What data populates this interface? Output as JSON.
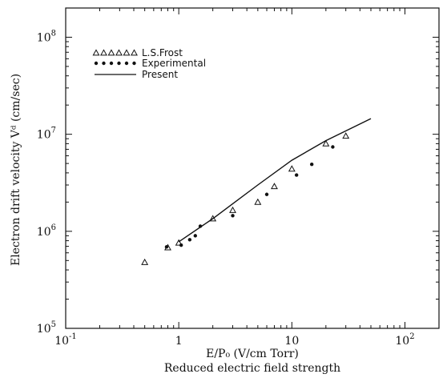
{
  "chart_data": {
    "type": "scatter",
    "title": "",
    "xlabel": "E/P₀ (V/cm Torr)",
    "xlabel_sub": "Reduced electric field strength",
    "ylabel": "Electron drift velocity  Vᵈ (cm/sec)",
    "x_scale": "log",
    "y_scale": "log",
    "xlim": [
      0.1,
      200
    ],
    "ylim": [
      100000,
      200000000
    ],
    "x_ticks": [
      {
        "value": 0.1,
        "base": "10",
        "exp": "-1"
      },
      {
        "value": 1,
        "base": "1",
        "exp": ""
      },
      {
        "value": 10,
        "base": "10",
        "exp": ""
      },
      {
        "value": 100,
        "base": "10",
        "exp": "2"
      }
    ],
    "y_ticks": [
      {
        "value": 100000,
        "base": "10",
        "exp": "5"
      },
      {
        "value": 1000000,
        "base": "10",
        "exp": "6"
      },
      {
        "value": 10000000,
        "base": "10",
        "exp": "7"
      },
      {
        "value": 100000000,
        "base": "10",
        "exp": "8"
      }
    ],
    "grid": false,
    "legend_position": "top-left",
    "series": [
      {
        "name": "L.S.Frost",
        "marker": "triangle-open",
        "points": [
          [
            0.5,
            480000
          ],
          [
            0.8,
            680000
          ],
          [
            1.0,
            760000
          ],
          [
            2.0,
            1350000
          ],
          [
            3.0,
            1650000
          ],
          [
            5.0,
            2000000
          ],
          [
            7.0,
            2900000
          ],
          [
            10.0,
            4400000
          ],
          [
            20.0,
            8000000
          ],
          [
            30.0,
            9600000
          ]
        ]
      },
      {
        "name": "Experimental",
        "marker": "filled-dot",
        "points": [
          [
            0.78,
            690000
          ],
          [
            1.05,
            720000
          ],
          [
            1.25,
            820000
          ],
          [
            1.4,
            900000
          ],
          [
            1.55,
            1130000
          ],
          [
            3.0,
            1450000
          ],
          [
            6.0,
            2400000
          ],
          [
            11.0,
            3800000
          ],
          [
            15.0,
            4900000
          ],
          [
            23.0,
            7400000
          ]
        ]
      },
      {
        "name": "Present",
        "marker": "line",
        "points": [
          [
            1.0,
            780000
          ],
          [
            2.0,
            1350000
          ],
          [
            5.0,
            3000000
          ],
          [
            10.0,
            5400000
          ],
          [
            20.0,
            8600000
          ],
          [
            50.0,
            14500000
          ]
        ]
      }
    ]
  }
}
